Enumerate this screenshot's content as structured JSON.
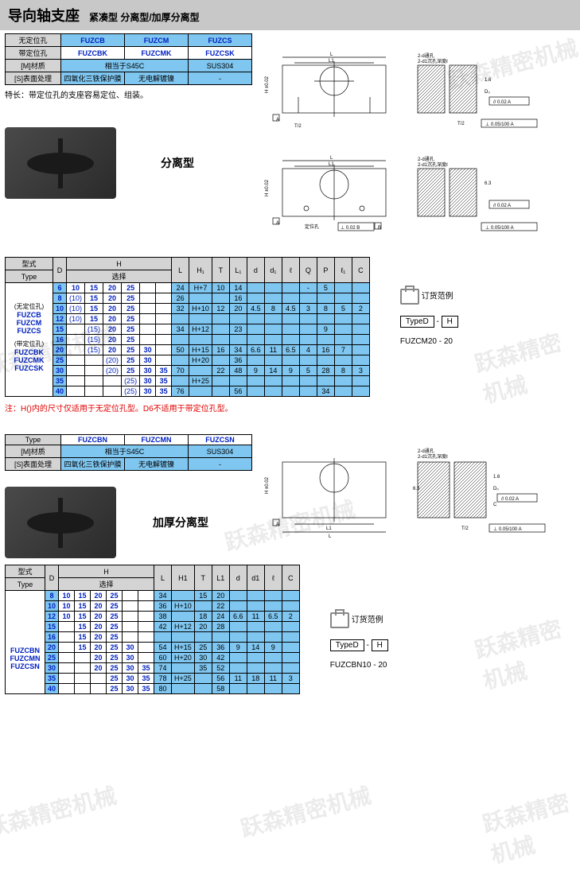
{
  "header": {
    "title": "导向轴支座",
    "subtitle": "紧凑型 分离型/加厚分离型"
  },
  "watermark_text": "跃森精密机械",
  "table1": {
    "rows": [
      {
        "label": "无定位孔",
        "cells": [
          "FUZCB",
          "FUZCM",
          "FUZCS"
        ],
        "label_bg": "grey",
        "cell_bg": "blue",
        "type_style": true
      },
      {
        "label": "带定位孔",
        "cells": [
          "FUZCBK",
          "FUZCMK",
          "FUZCSK"
        ],
        "label_bg": "grey",
        "cell_bg": "none",
        "type_style": true
      },
      {
        "label": "[M]材质",
        "cells_merged": [
          {
            "span": 2,
            "text": "相当于S45C"
          },
          {
            "span": 1,
            "text": "SUS304"
          }
        ],
        "label_bg": "grey",
        "cell_bg": "blue"
      },
      {
        "label": "[S]表面处理",
        "cells": [
          "四氧化三铁保护膜",
          "无电解镀镍",
          "-"
        ],
        "label_bg": "grey",
        "cell_bg": "blue"
      }
    ]
  },
  "feature_note": "特长：带定位孔的支座容易定位、组装。",
  "section1_label": "分离型",
  "spec1": {
    "head1": [
      "型式",
      "",
      "H",
      "L",
      "H₁",
      "T",
      "L₁",
      "d",
      "d₁",
      "ℓ",
      "Q",
      "P",
      "ℓ₁",
      "C"
    ],
    "head2": [
      "Type",
      "D",
      "选择",
      "",
      "",
      "",
      "",
      "",
      "",
      "",
      "",
      "",
      "",
      ""
    ],
    "type_groups": [
      {
        "label": "(无定位孔)",
        "types": [
          "FUZCB",
          "FUZCM",
          "FUZCS"
        ]
      },
      {
        "label": "(带定位孔)",
        "types": [
          "FUZCBK",
          "FUZCMK",
          "FUZCSK"
        ]
      }
    ],
    "rows": [
      {
        "D": "6",
        "H": [
          "10",
          "15",
          "20",
          "25",
          ""
        ],
        "L": "24",
        "H1": "H+7",
        "T": "10",
        "L1": "14",
        "d": "",
        "d1": "",
        "l": "",
        "Q": "-",
        "P": "5",
        "l1": "",
        "C": ""
      },
      {
        "D": "8",
        "H": [
          "(10)",
          "15",
          "20",
          "25",
          ""
        ],
        "L": "26",
        "H1": "",
        "T": "",
        "L1": "16",
        "d": "",
        "d1": "",
        "l": "",
        "Q": "",
        "P": "",
        "l1": "",
        "C": ""
      },
      {
        "D": "10",
        "H": [
          "(10)",
          "15",
          "20",
          "25",
          ""
        ],
        "L": "32",
        "H1": "H+10",
        "T": "12",
        "L1": "20",
        "d": "4.5",
        "d1": "8",
        "l": "4.5",
        "Q": "3",
        "P": "8",
        "l1": "5",
        "C": "2"
      },
      {
        "D": "12",
        "H": [
          "(10)",
          "15",
          "20",
          "25",
          ""
        ],
        "L": "",
        "H1": "",
        "T": "",
        "L1": "",
        "d": "",
        "d1": "",
        "l": "",
        "Q": "",
        "P": "",
        "l1": "",
        "C": ""
      },
      {
        "D": "15",
        "H": [
          "",
          "(15)",
          "20",
          "25",
          ""
        ],
        "L": "34",
        "H1": "H+12",
        "T": "",
        "L1": "23",
        "d": "",
        "d1": "",
        "l": "",
        "Q": "",
        "P": "9",
        "l1": "",
        "C": ""
      },
      {
        "D": "16",
        "H": [
          "",
          "(15)",
          "20",
          "25",
          ""
        ],
        "L": "",
        "H1": "",
        "T": "",
        "L1": "",
        "d": "",
        "d1": "",
        "l": "",
        "Q": "",
        "P": "",
        "l1": "",
        "C": ""
      },
      {
        "D": "20",
        "H": [
          "",
          "(15)",
          "20",
          "25",
          "30"
        ],
        "L": "50",
        "H1": "H+15",
        "T": "16",
        "L1": "34",
        "d": "6.6",
        "d1": "11",
        "l": "6.5",
        "Q": "4",
        "P": "16",
        "l1": "7",
        "C": ""
      },
      {
        "D": "25",
        "H": [
          "",
          "",
          "(20)",
          "25",
          "30"
        ],
        "L": "",
        "H1": "H+20",
        "T": "",
        "L1": "36",
        "d": "",
        "d1": "",
        "l": "",
        "Q": "",
        "P": "",
        "l1": "",
        "C": ""
      },
      {
        "D": "30",
        "H": [
          "",
          "",
          "(20)",
          "25",
          "30",
          "35"
        ],
        "L": "70",
        "H1": "",
        "T": "22",
        "L1": "48",
        "d": "9",
        "d1": "14",
        "l": "9",
        "Q": "5",
        "P": "28",
        "l1": "8",
        "C": "3"
      },
      {
        "D": "35",
        "H": [
          "",
          "",
          "",
          "(25)",
          "30",
          "35"
        ],
        "L": "",
        "H1": "H+25",
        "T": "",
        "L1": "",
        "d": "",
        "d1": "",
        "l": "",
        "Q": "",
        "P": "",
        "l1": "",
        "C": ""
      },
      {
        "D": "40",
        "H": [
          "",
          "",
          "",
          "(25)",
          "30",
          "35"
        ],
        "L": "76",
        "H1": "",
        "T": "",
        "L1": "56",
        "d": "",
        "d1": "",
        "l": "",
        "Q": "",
        "P": "34",
        "l1": "",
        "C": ""
      }
    ]
  },
  "note1": "注：H()内的尺寸仅适用于无定位孔型。D6不适用于带定位孔型。",
  "order1": {
    "title": "订货范例",
    "line1_a": "TypeD",
    "line1_b": "H",
    "example": "FUZCM20   -   20"
  },
  "table2": {
    "rows": [
      {
        "label": "Type",
        "cells": [
          "FUZCBN",
          "FUZCMN",
          "FUZCSN"
        ],
        "type_style": true
      },
      {
        "label": "[M]材质",
        "cells_merged": [
          {
            "span": 2,
            "text": "相当于S45C"
          },
          {
            "span": 1,
            "text": "SUS304"
          }
        ]
      },
      {
        "label": "[S]表面处理",
        "cells": [
          "四氧化三铁保护膜",
          "无电解镀镍",
          "-"
        ]
      }
    ]
  },
  "section2_label": "加厚分离型",
  "spec2": {
    "head1": [
      "型式",
      "",
      "H",
      "L",
      "H1",
      "T",
      "L1",
      "d",
      "d1",
      "ℓ",
      "C"
    ],
    "head2": [
      "Type",
      "D",
      "选择",
      "",
      "",
      "",
      "",
      "",
      "",
      "",
      ""
    ],
    "types": [
      "FUZCBN",
      "FUZCMN",
      "FUZCSN"
    ],
    "rows": [
      {
        "D": "8",
        "H": [
          "10",
          "15",
          "20",
          "25",
          ""
        ],
        "L": "34",
        "H1": "",
        "T": "15",
        "L1": "20",
        "d": "",
        "d1": "",
        "l": "",
        "C": ""
      },
      {
        "D": "10",
        "H": [
          "10",
          "15",
          "20",
          "25",
          ""
        ],
        "L": "36",
        "H1": "H+10",
        "T": "",
        "L1": "22",
        "d": "",
        "d1": "",
        "l": "",
        "C": ""
      },
      {
        "D": "12",
        "H": [
          "10",
          "15",
          "20",
          "25",
          ""
        ],
        "L": "38",
        "H1": "",
        "T": "18",
        "L1": "24",
        "d": "6.6",
        "d1": "11",
        "l": "6.5",
        "C": "2"
      },
      {
        "D": "15",
        "H": [
          "",
          "15",
          "20",
          "25",
          ""
        ],
        "L": "42",
        "H1": "H+12",
        "T": "20",
        "L1": "28",
        "d": "",
        "d1": "",
        "l": "",
        "C": ""
      },
      {
        "D": "16",
        "H": [
          "",
          "15",
          "20",
          "25",
          ""
        ],
        "L": "",
        "H1": "",
        "T": "",
        "L1": "",
        "d": "",
        "d1": "",
        "l": "",
        "C": ""
      },
      {
        "D": "20",
        "H": [
          "",
          "15",
          "20",
          "25",
          "30"
        ],
        "L": "54",
        "H1": "H+15",
        "T": "25",
        "L1": "36",
        "d": "9",
        "d1": "14",
        "l": "9",
        "C": ""
      },
      {
        "D": "25",
        "H": [
          "",
          "",
          "20",
          "25",
          "30"
        ],
        "L": "60",
        "H1": "H+20",
        "T": "30",
        "L1": "42",
        "d": "",
        "d1": "",
        "l": "",
        "C": ""
      },
      {
        "D": "30",
        "H": [
          "",
          "",
          "20",
          "25",
          "30",
          "35"
        ],
        "L": "74",
        "H1": "",
        "T": "35",
        "L1": "52",
        "d": "",
        "d1": "",
        "l": "",
        "C": ""
      },
      {
        "D": "35",
        "H": [
          "",
          "",
          "",
          "25",
          "30",
          "35"
        ],
        "L": "78",
        "H1": "H+25",
        "T": "",
        "L1": "56",
        "d": "11",
        "d1": "18",
        "l": "11",
        "C": "3"
      },
      {
        "D": "40",
        "H": [
          "",
          "",
          "",
          "25",
          "30",
          "35"
        ],
        "L": "80",
        "H1": "",
        "T": "",
        "L1": "58",
        "d": "",
        "d1": "",
        "l": "",
        "C": ""
      }
    ]
  },
  "order2": {
    "title": "订货范例",
    "line1_a": "TypeD",
    "line1_b": "H",
    "example": "FUZCBN10   -   20"
  },
  "diag_labels": {
    "tol1": "// 0.02 A",
    "tol2": "⊥ 0.05/100 A",
    "hole_note": "2-d通孔\n2-d1沉孔深度ℓ",
    "dims": [
      "L",
      "L1",
      "H ±0.02",
      "T/2",
      "C",
      "D₀",
      "1.6",
      "6.3",
      "A",
      "定位孔",
      "⊥ 0.02 B",
      "B"
    ]
  }
}
